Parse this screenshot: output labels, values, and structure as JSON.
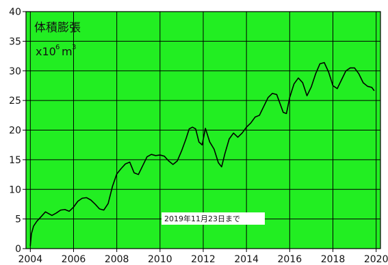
{
  "chart_data": {
    "type": "line",
    "title": "",
    "xlabel": "",
    "ylabel": "",
    "overlay_label": "体積膨張",
    "unit_label": {
      "base": "x10",
      "exp": "6",
      "unit": "m",
      "unit_exp": "3"
    },
    "annotation": "2019年11月23日まで",
    "x_ticks": [
      "2004",
      "2006",
      "2008",
      "2010",
      "2012",
      "2014",
      "2016",
      "2018",
      "2020"
    ],
    "y_ticks": [
      "0",
      "5",
      "10",
      "15",
      "20",
      "25",
      "30",
      "35",
      "40"
    ],
    "xlim": [
      2003.8,
      2020.2
    ],
    "ylim": [
      0,
      40
    ],
    "grid": true,
    "colors": {
      "plot_background": "#22ee22",
      "line": "#000000",
      "grid": "#000000",
      "annotation_background": "#ffffff"
    },
    "series": [
      {
        "x": [
          2004.0,
          2004.05,
          2004.15,
          2004.3,
          2004.5,
          2004.7,
          2004.85,
          2005.0,
          2005.2,
          2005.4,
          2005.6,
          2005.8,
          2006.0,
          2006.2,
          2006.4,
          2006.6,
          2006.8,
          2007.0,
          2007.2,
          2007.4,
          2007.6,
          2007.8,
          2008.0,
          2008.2,
          2008.4,
          2008.6,
          2008.8,
          2009.0,
          2009.2,
          2009.4,
          2009.6,
          2009.8,
          2010.0,
          2010.2,
          2010.4,
          2010.6,
          2010.8,
          2011.0,
          2011.2,
          2011.35,
          2011.5,
          2011.65,
          2011.8,
          2011.95,
          2012.1,
          2012.3,
          2012.5,
          2012.7,
          2012.85,
          2013.0,
          2013.2,
          2013.4,
          2013.6,
          2013.8,
          2014.0,
          2014.2,
          2014.4,
          2014.6,
          2014.8,
          2015.0,
          2015.2,
          2015.4,
          2015.55,
          2015.7,
          2015.85,
          2016.0,
          2016.2,
          2016.4,
          2016.6,
          2016.8,
          2017.0,
          2017.2,
          2017.4,
          2017.6,
          2017.8,
          2018.0,
          2018.2,
          2018.4,
          2018.6,
          2018.8,
          2019.0,
          2019.2,
          2019.4,
          2019.6,
          2019.8,
          2019.9
        ],
        "y": [
          0.5,
          2.5,
          3.8,
          4.6,
          5.4,
          6.2,
          5.9,
          5.6,
          6.0,
          6.5,
          6.6,
          6.3,
          7.0,
          8.0,
          8.5,
          8.6,
          8.2,
          7.5,
          6.7,
          6.5,
          7.6,
          10.5,
          12.6,
          13.5,
          14.3,
          14.6,
          12.8,
          12.5,
          14.0,
          15.5,
          15.9,
          15.7,
          15.8,
          15.6,
          14.8,
          14.2,
          14.8,
          16.5,
          18.5,
          20.2,
          20.5,
          20.2,
          18.0,
          17.5,
          20.3,
          18.0,
          16.8,
          14.5,
          13.8,
          16.0,
          18.5,
          19.5,
          18.8,
          19.5,
          20.5,
          21.2,
          22.2,
          22.5,
          24.0,
          25.5,
          26.2,
          26.0,
          24.5,
          23.0,
          22.8,
          25.5,
          27.8,
          28.8,
          28.0,
          25.8,
          27.3,
          29.5,
          31.2,
          31.4,
          29.8,
          27.5,
          27.0,
          28.5,
          30.0,
          30.5,
          30.5,
          29.5,
          28.0,
          27.4,
          27.2,
          26.7
        ]
      }
    ]
  }
}
